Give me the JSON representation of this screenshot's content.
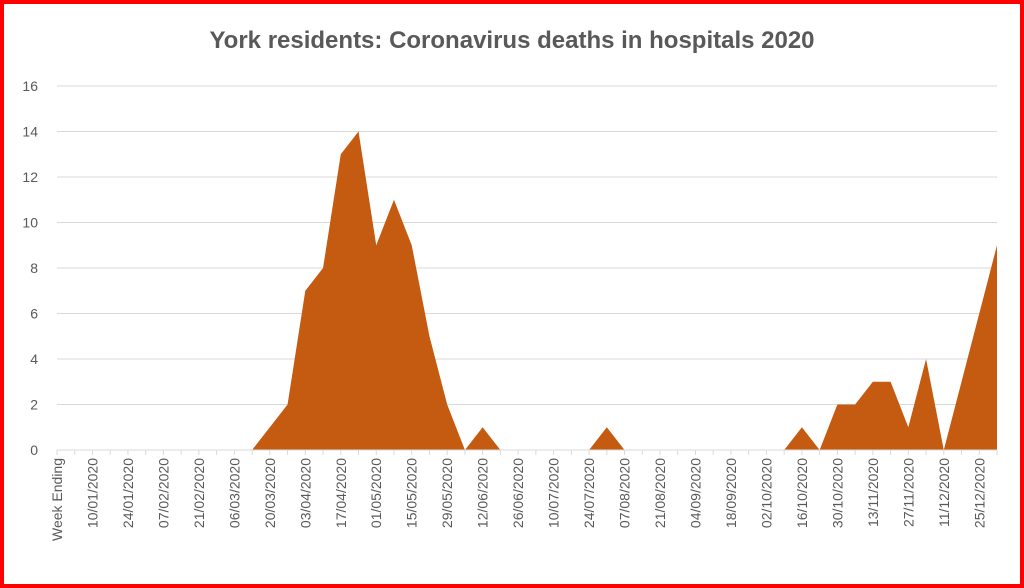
{
  "chart_data": {
    "type": "area",
    "title": "York residents: Coronavirus deaths in hospitals 2020",
    "color": "#c55a11",
    "categories": [
      "Week Ending",
      null,
      "10/01/2020",
      null,
      "24/01/2020",
      null,
      "07/02/2020",
      null,
      "21/02/2020",
      null,
      "06/03/2020",
      null,
      "20/03/2020",
      null,
      "03/04/2020",
      null,
      "17/04/2020",
      null,
      "01/05/2020",
      null,
      "15/05/2020",
      null,
      "29/05/2020",
      null,
      "12/06/2020",
      null,
      "26/06/2020",
      null,
      "10/07/2020",
      null,
      "24/07/2020",
      null,
      "07/08/2020",
      null,
      "21/08/2020",
      null,
      "04/09/2020",
      null,
      "18/09/2020",
      null,
      "02/10/2020",
      null,
      "16/10/2020",
      null,
      "30/10/2020",
      null,
      "13/11/2020",
      null,
      "27/11/2020",
      null,
      "11/12/2020",
      null,
      "25/12/2020",
      null
    ],
    "values": [
      0,
      0,
      0,
      0,
      0,
      0,
      0,
      0,
      0,
      0,
      0,
      0,
      1,
      2,
      7,
      8,
      13,
      14,
      9,
      11,
      9,
      5,
      2,
      0,
      1,
      0,
      0,
      0,
      0,
      0,
      0,
      1,
      0,
      0,
      0,
      0,
      0,
      0,
      0,
      0,
      0,
      0,
      1,
      0,
      2,
      2,
      3,
      3,
      1,
      4,
      0,
      3,
      6,
      9
    ],
    "ylim": [
      0,
      16
    ],
    "yticks": [
      0,
      2,
      4,
      6,
      8,
      10,
      12,
      14,
      16
    ],
    "grid": true
  }
}
